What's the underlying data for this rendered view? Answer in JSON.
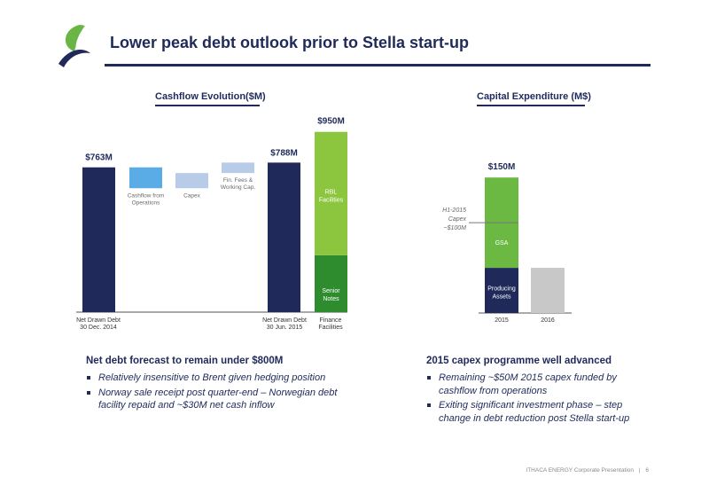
{
  "slide": {
    "title": "Lower peak debt outlook prior to Stella start-up",
    "footer_company": "ITHACA ENERGY Corporate Presentation",
    "footer_separator": "|",
    "page_number": "6"
  },
  "logo": {
    "icon": "leaf-logo-icon",
    "colors": {
      "leaf": "#6ab545",
      "swoosh": "#1f2a5a"
    }
  },
  "colors": {
    "navy": "#1f2a5a",
    "light_blue": "#5aace6",
    "pale_blue": "#b8cce8",
    "lime": "#8cc63f",
    "green": "#2e8b2e",
    "grass": "#6bb843",
    "grey": "#c8c8c8"
  },
  "left_panel": {
    "heading": "Cashflow Evolution($M)",
    "bullets_title": "Net debt forecast to remain under $800M",
    "bullets": [
      "Relatively insensitive to Brent given hedging position",
      "Norway sale receipt post quarter-end – Norwegian debt facility repaid and ~$30M net cash inflow"
    ]
  },
  "right_panel": {
    "heading": "Capital Expenditure (M$)",
    "bullets_title": "2015 capex programme well advanced",
    "bullets": [
      "Remaining ~$50M 2015 capex funded by cashflow from operations",
      "Exiting significant investment phase – step change in debt reduction post Stella start-up"
    ]
  },
  "chart_data": [
    {
      "type": "bar",
      "subtype": "waterfall",
      "title": "Cashflow Evolution($M)",
      "ylim": [
        0,
        1000
      ],
      "bars": [
        {
          "label": "Net Drawn Debt 30 Dec. 2014",
          "start": 0,
          "end": 763,
          "value_label": "$763M",
          "color": "#1f2a5a"
        },
        {
          "label": "Cashflow from Operations",
          "start": 763,
          "end": 653,
          "inner_label": "Cashflow from Operations",
          "color": "#5aace6"
        },
        {
          "label": "Capex",
          "start": 653,
          "end": 733,
          "inner_label": "Capex",
          "color": "#b8cce8"
        },
        {
          "label": "Fin. Fees & Working Cap.",
          "start": 733,
          "end": 788,
          "inner_label": "Fin. Fees & Working Cap.",
          "color": "#b8cce8"
        },
        {
          "label": "Net Drawn Debt 30 Jun. 2015",
          "start": 0,
          "end": 788,
          "value_label": "$788M",
          "color": "#1f2a5a"
        }
      ],
      "stacked_bar": {
        "label": "Finance Facilities",
        "total_label": "$950M",
        "segments": [
          {
            "name": "Senior Notes",
            "value": 300,
            "color": "#2e8b2e"
          },
          {
            "name": "RBL Facilities",
            "value": 650,
            "color": "#8cc63f"
          }
        ]
      },
      "x_labels": [
        "Net Drawn Debt",
        "30 Dec. 2014",
        "Net Drawn Debt",
        "30 Jun. 2015",
        "Finance",
        "Facilities"
      ]
    },
    {
      "type": "bar",
      "subtype": "stacked",
      "title": "Capital Expenditure (M$)",
      "categories": [
        "2015",
        "2016"
      ],
      "ylim": [
        0,
        160
      ],
      "series": [
        {
          "name": "Producing Assets",
          "values": [
            50,
            0
          ],
          "color": "#1f2a5a"
        },
        {
          "name": "GSA",
          "values": [
            100,
            0
          ],
          "color": "#6bb843"
        },
        {
          "name": "",
          "values": [
            0,
            50
          ],
          "color": "#c8c8c8"
        }
      ],
      "total_labels": [
        "$150M",
        ""
      ],
      "annotation": "H1-2015 Capex ~$100M",
      "annotation_lines": [
        "H1-2015",
        "Capex",
        "~$100M"
      ],
      "annotation_value": 100
    }
  ]
}
